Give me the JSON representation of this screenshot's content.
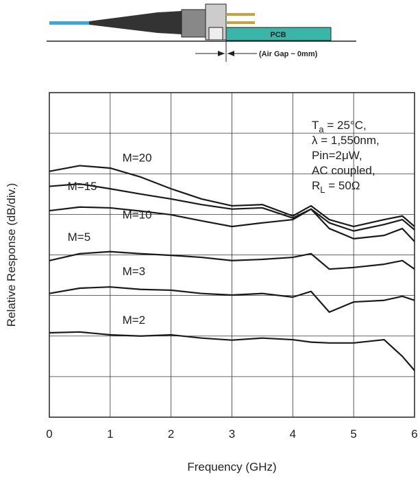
{
  "diagram": {
    "pcb_label": "PCB",
    "gap_label": "(Air Gap ~ 0mm)"
  },
  "chart_data": {
    "type": "line",
    "x_label": "Frequency (GHz)",
    "y_label": "Relative Response (dB/div.)",
    "xlim": [
      0,
      6
    ],
    "xticks": [
      0,
      1,
      2,
      3,
      4,
      5,
      6
    ],
    "ylim": [
      0,
      8
    ],
    "yticks": [
      0,
      1,
      2,
      3,
      4,
      5,
      6,
      7,
      8
    ],
    "grid": true,
    "x": [
      0,
      0.5,
      1,
      1.5,
      2,
      2.5,
      3,
      3.5,
      4,
      4.3,
      4.6,
      5,
      5.5,
      5.8,
      6
    ],
    "series": [
      {
        "name": "M=20",
        "color": "#1a1a1a",
        "values": [
          6.06,
          6.2,
          6.14,
          5.92,
          5.63,
          5.38,
          5.21,
          5.24,
          4.96,
          5.21,
          4.87,
          4.7,
          4.87,
          4.96,
          4.7
        ]
      },
      {
        "name": "M=15",
        "color": "#1a1a1a",
        "values": [
          5.69,
          5.75,
          5.63,
          5.5,
          5.38,
          5.24,
          5.13,
          5.16,
          4.91,
          5.13,
          4.79,
          4.59,
          4.75,
          4.87,
          4.62
        ]
      },
      {
        "name": "M=10",
        "color": "#1a1a1a",
        "values": [
          5.09,
          5.18,
          5.16,
          5.08,
          4.99,
          4.84,
          4.7,
          4.79,
          4.87,
          5.13,
          4.65,
          4.4,
          4.48,
          4.65,
          4.33
        ]
      },
      {
        "name": "M=5",
        "color": "#1a1a1a",
        "values": [
          3.86,
          4.03,
          4.08,
          4.03,
          3.99,
          3.94,
          3.86,
          3.89,
          3.94,
          4.03,
          3.65,
          3.69,
          3.77,
          3.86,
          3.65
        ]
      },
      {
        "name": "M=3",
        "color": "#1a1a1a",
        "values": [
          3.05,
          3.18,
          3.21,
          3.15,
          3.13,
          3.05,
          3.01,
          3.05,
          2.96,
          3.1,
          2.59,
          2.84,
          2.88,
          2.98,
          2.88
        ]
      },
      {
        "name": "M=2",
        "color": "#1a1a1a",
        "values": [
          2.08,
          2.1,
          2.03,
          2.0,
          2.03,
          1.95,
          1.9,
          1.95,
          1.91,
          1.85,
          1.83,
          1.83,
          1.91,
          1.5,
          1.15
        ]
      }
    ],
    "annotation_lines": [
      [
        "T",
        "a",
        " = 25°C,"
      ],
      [
        "λ = 1,550nm,"
      ],
      [
        "Pin=2μW,"
      ],
      [
        "AC coupled,"
      ],
      [
        "R",
        "L",
        " = 50Ω"
      ]
    ]
  }
}
